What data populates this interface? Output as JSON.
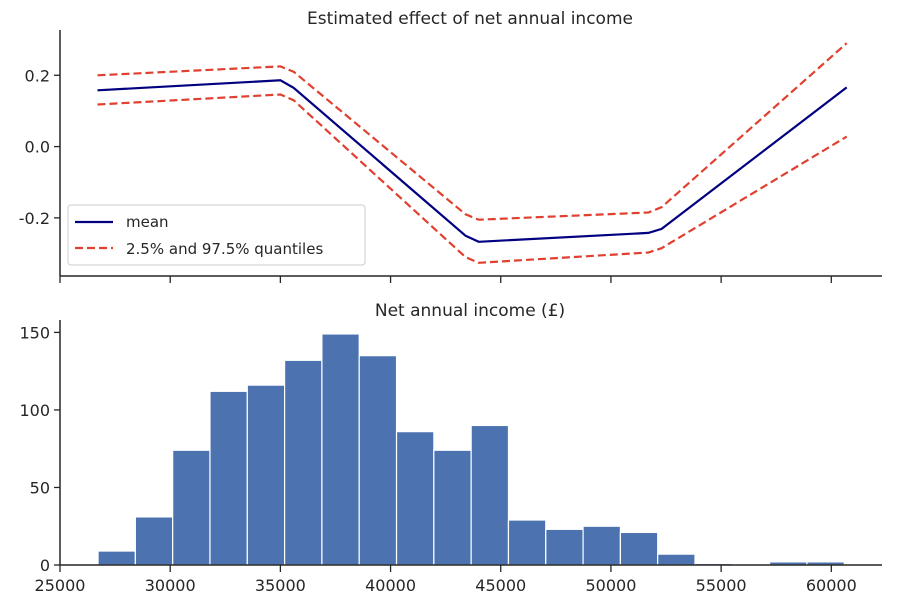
{
  "chart_data": [
    {
      "type": "line",
      "title": "Estimated effect of net annual income",
      "xlabel": "",
      "ylabel": "",
      "xlim": [
        25000,
        62300
      ],
      "ylim": [
        -0.363,
        0.327
      ],
      "yticks": [
        0.2,
        0.0,
        -0.2
      ],
      "ytick_labels": [
        "0.2",
        "0.0",
        "-0.2"
      ],
      "xticks": [
        25000,
        30000,
        35000,
        40000,
        45000,
        50000,
        55000,
        60000
      ],
      "grid": false,
      "legend_position": "lower-left",
      "x": [
        26700,
        35000,
        35600,
        43400,
        44000,
        51700,
        52300,
        60700
      ],
      "series": [
        {
          "name": "mean",
          "style": "solid",
          "color": "#000080",
          "values": [
            0.158,
            0.186,
            0.165,
            -0.25,
            -0.267,
            -0.242,
            -0.231,
            0.166
          ]
        },
        {
          "name": "2.5% and 97.5% quantiles",
          "style": "dashed",
          "color": "#e0402f",
          "values": [
            0.2,
            0.225,
            0.21,
            -0.19,
            -0.205,
            -0.185,
            -0.17,
            0.29
          ]
        },
        {
          "name": "",
          "style": "dashed",
          "color": "#e0402f",
          "values": [
            0.118,
            0.146,
            0.13,
            -0.31,
            -0.326,
            -0.297,
            -0.285,
            0.028
          ]
        }
      ]
    },
    {
      "type": "bar",
      "title": "Net annual income (£)",
      "xlabel": "",
      "ylabel": "",
      "xlim": [
        25000,
        62300
      ],
      "ylim": [
        0,
        158
      ],
      "yticks": [
        0,
        50,
        100,
        150
      ],
      "ytick_labels": [
        "0",
        "50",
        "100",
        "150"
      ],
      "xticks": [
        25000,
        30000,
        35000,
        40000,
        45000,
        50000,
        55000,
        60000
      ],
      "xtick_labels": [
        "25000",
        "30000",
        "35000",
        "40000",
        "45000",
        "50000",
        "55000",
        "60000"
      ],
      "grid": false,
      "color": "#4c72b0",
      "bin_start": 26727,
      "bin_width": 1693,
      "values": [
        9,
        31,
        74,
        112,
        116,
        132,
        149,
        135,
        86,
        74,
        90,
        29,
        23,
        25,
        21,
        7,
        1,
        0,
        2,
        2
      ]
    }
  ]
}
